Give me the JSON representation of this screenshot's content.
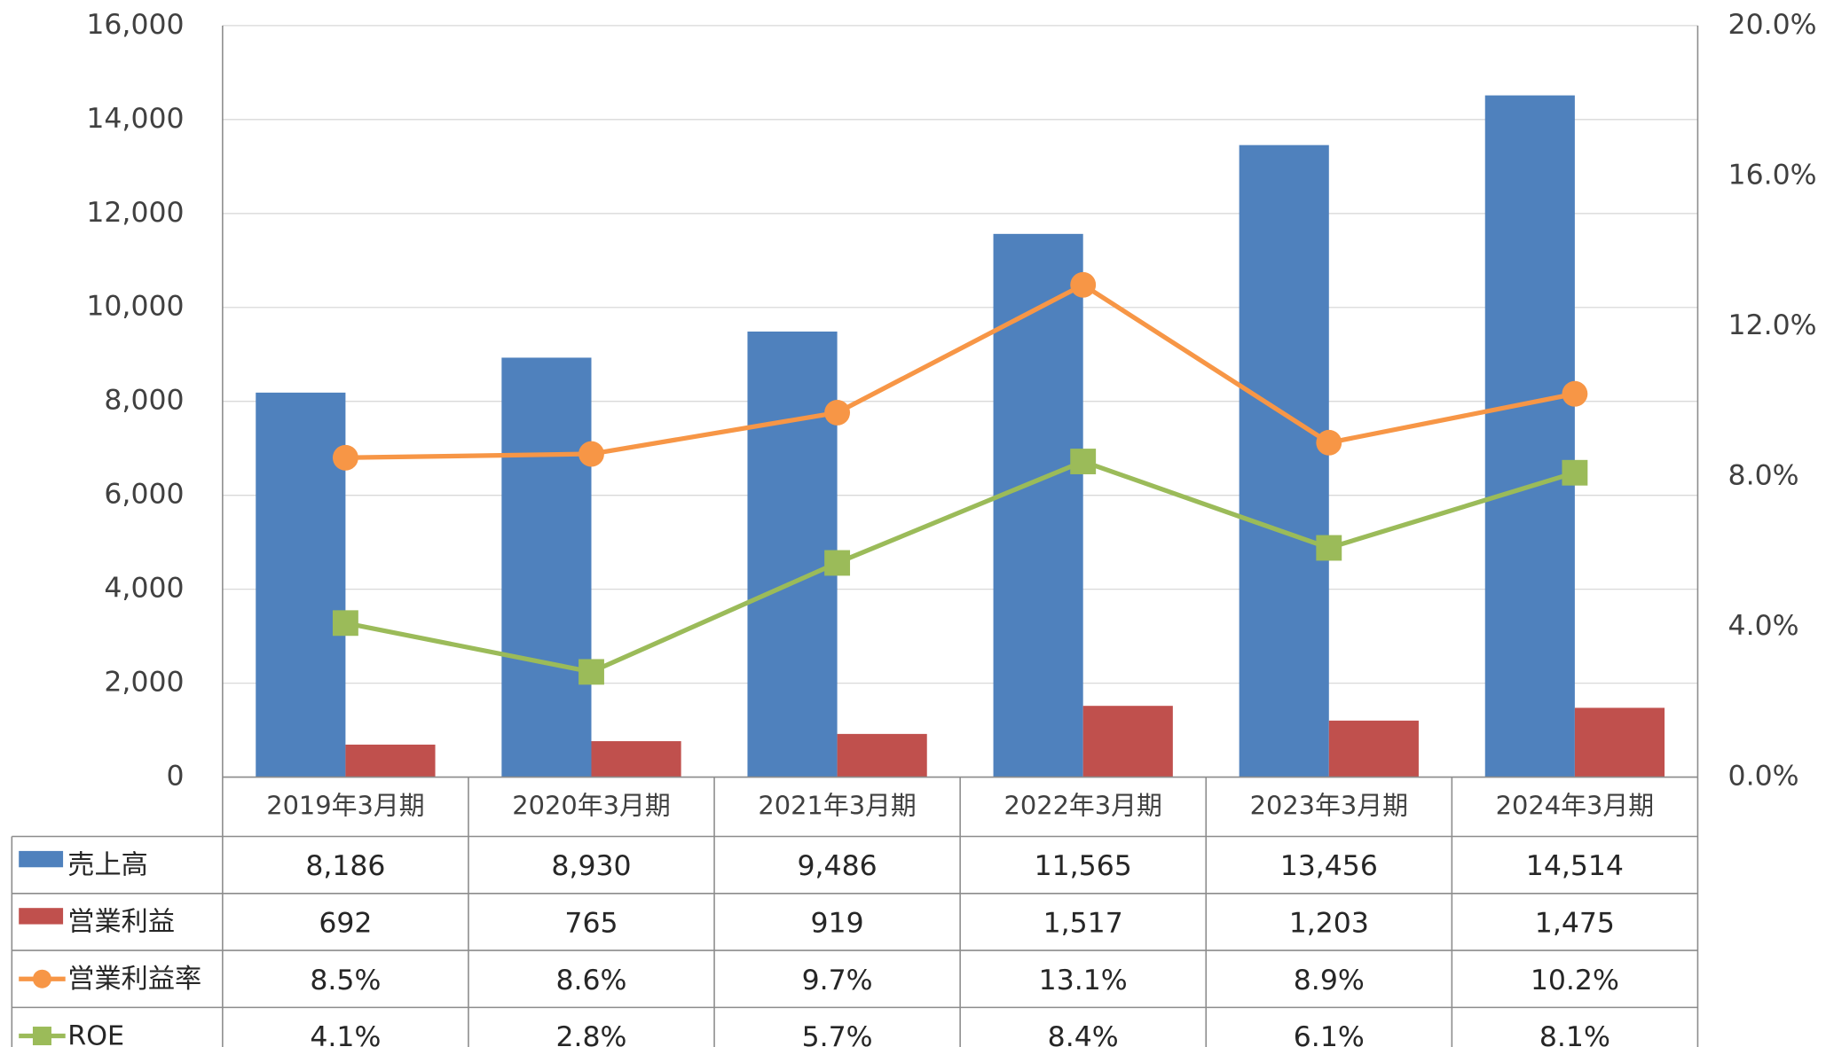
{
  "chart_data": {
    "type": "bar",
    "categories": [
      "2019年3月期",
      "2020年3月期",
      "2021年3月期",
      "2022年3月期",
      "2023年3月期",
      "2024年3月期"
    ],
    "series": [
      {
        "name": "売上高",
        "type": "bar",
        "color": "#4f81bd",
        "values": [
          8186,
          8930,
          9486,
          11565,
          13456,
          14514
        ],
        "value_labels": [
          "8,186",
          "8,930",
          "9,486",
          "11,565",
          "13,456",
          "14,514"
        ]
      },
      {
        "name": "営業利益",
        "type": "bar",
        "color": "#c0504d",
        "values": [
          692,
          765,
          919,
          1517,
          1203,
          1475
        ],
        "value_labels": [
          "692",
          "765",
          "919",
          "1,517",
          "1,203",
          "1,475"
        ]
      },
      {
        "name": "営業利益率",
        "type": "line",
        "axis": "y2",
        "marker": "circle",
        "color": "#f79646",
        "values": [
          8.5,
          8.6,
          9.7,
          13.1,
          8.9,
          10.2
        ],
        "value_labels": [
          "8.5%",
          "8.6%",
          "9.7%",
          "13.1%",
          "8.9%",
          "10.2%"
        ]
      },
      {
        "name": "ROE",
        "type": "line",
        "axis": "y2",
        "marker": "square",
        "color": "#9bbb59",
        "values": [
          4.1,
          2.8,
          5.7,
          8.4,
          6.1,
          8.1
        ],
        "value_labels": [
          "4.1%",
          "2.8%",
          "5.7%",
          "8.4%",
          "6.1%",
          "8.1%"
        ]
      }
    ],
    "ylim": [
      0,
      16000
    ],
    "yticks": [
      0,
      {
        "value": 2000,
        "label": "2,000"
      },
      {
        "value": 4000,
        "label": "4,000"
      },
      {
        "value": 6000,
        "label": "6,000"
      },
      {
        "value": 8000,
        "label": "8,000"
      },
      {
        "value": 10000,
        "label": "10,000"
      },
      {
        "value": 12000,
        "label": "12,000"
      },
      {
        "value": 14000,
        "label": "14,000"
      },
      {
        "value": 16000,
        "label": "16,000"
      }
    ],
    "y2lim": [
      0,
      20
    ],
    "y2ticks": [
      {
        "value": 0,
        "label": "0.0%"
      },
      {
        "value": 4,
        "label": "4.0%"
      },
      {
        "value": 8,
        "label": "8.0%"
      },
      {
        "value": 12,
        "label": "12.0%"
      },
      {
        "value": 16,
        "label": "16.0%"
      },
      {
        "value": 20,
        "label": "20.0%"
      }
    ],
    "grid": true
  }
}
